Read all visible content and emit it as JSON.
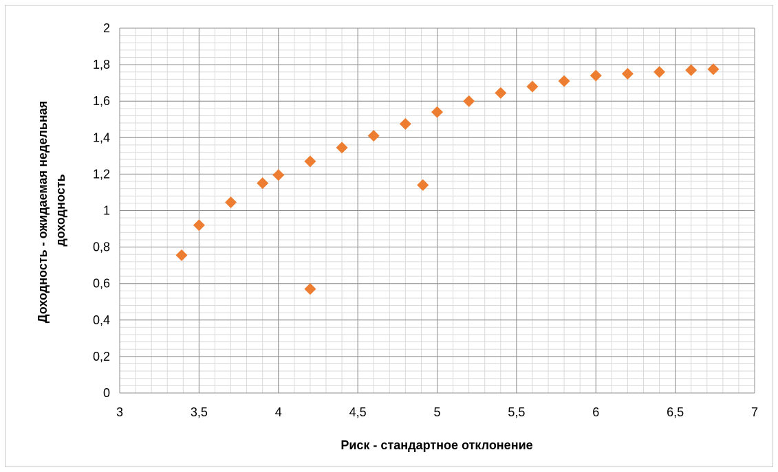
{
  "chart_data": {
    "type": "scatter",
    "title": "",
    "xlabel": "Риск - стандартное отклонение",
    "ylabel_lines": [
      "Доходность - ожидаемая недельная",
      "доходность"
    ],
    "xlim": [
      3,
      7
    ],
    "ylim": [
      0,
      2
    ],
    "x_ticks": [
      3,
      3.5,
      4,
      4.5,
      5,
      5.5,
      6,
      6.5,
      7
    ],
    "x_tick_labels": [
      "3",
      "3,5",
      "4",
      "4,5",
      "5",
      "5,5",
      "6",
      "6,5",
      "7"
    ],
    "y_ticks": [
      0,
      0.2,
      0.4,
      0.6,
      0.8,
      1,
      1.2,
      1.4,
      1.6,
      1.8,
      2
    ],
    "y_tick_labels": [
      "0",
      "0,2",
      "0,4",
      "0,6",
      "0,8",
      "1",
      "1,2",
      "1,4",
      "1,6",
      "1,8",
      "2"
    ],
    "grid": true,
    "minor_grid": true,
    "legend": "none",
    "marker": "diamond",
    "marker_color": "#ED7D31",
    "series": [
      {
        "points": [
          {
            "x": 3.39,
            "y": 0.755
          },
          {
            "x": 3.5,
            "y": 0.92
          },
          {
            "x": 3.7,
            "y": 1.045
          },
          {
            "x": 3.9,
            "y": 1.15
          },
          {
            "x": 4.0,
            "y": 1.195
          },
          {
            "x": 4.2,
            "y": 1.27
          },
          {
            "x": 4.4,
            "y": 1.345
          },
          {
            "x": 4.6,
            "y": 1.41
          },
          {
            "x": 4.8,
            "y": 1.475
          },
          {
            "x": 5.0,
            "y": 1.54
          },
          {
            "x": 5.2,
            "y": 1.6
          },
          {
            "x": 5.4,
            "y": 1.645
          },
          {
            "x": 5.6,
            "y": 1.68
          },
          {
            "x": 5.8,
            "y": 1.71
          },
          {
            "x": 6.0,
            "y": 1.74
          },
          {
            "x": 6.2,
            "y": 1.75
          },
          {
            "x": 6.4,
            "y": 1.76
          },
          {
            "x": 6.6,
            "y": 1.77
          },
          {
            "x": 6.74,
            "y": 1.775
          },
          {
            "x": 4.2,
            "y": 0.57
          },
          {
            "x": 4.91,
            "y": 1.14
          }
        ]
      }
    ]
  }
}
